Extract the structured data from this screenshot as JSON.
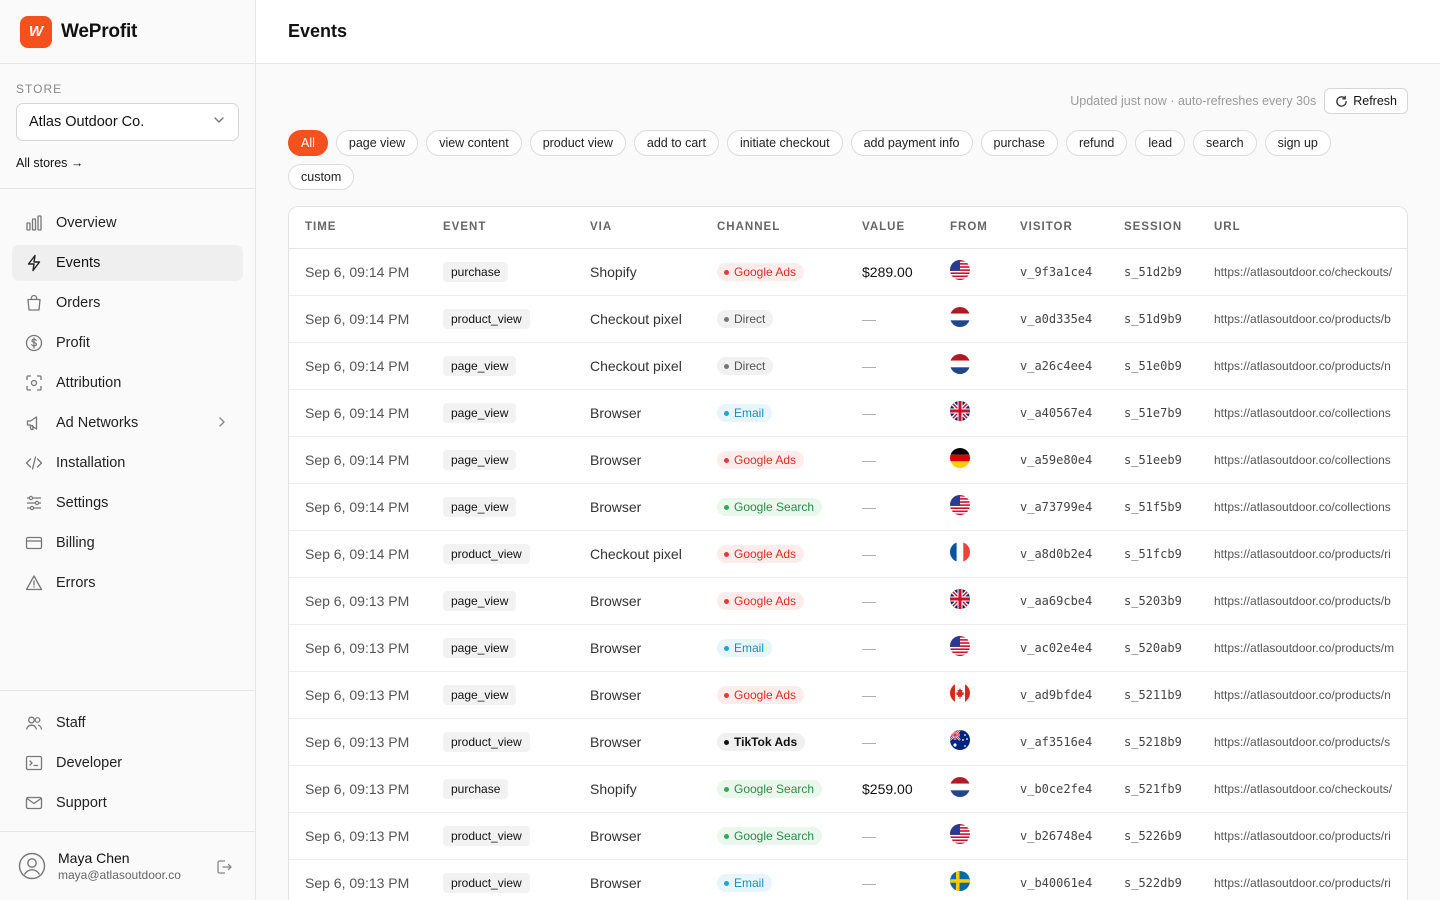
{
  "brand": {
    "logo_text": "W",
    "name": "WeProfit"
  },
  "store": {
    "label": "STORE",
    "selected": "Atlas Outdoor Co.",
    "all_stores": "All stores →"
  },
  "nav": {
    "items": [
      {
        "label": "Overview",
        "icon": "bar-chart-icon"
      },
      {
        "label": "Events",
        "icon": "lightning-icon",
        "active": true
      },
      {
        "label": "Orders",
        "icon": "shopping-bag-icon"
      },
      {
        "label": "Profit",
        "icon": "dollar-circle-icon"
      },
      {
        "label": "Attribution",
        "icon": "target-icon"
      },
      {
        "label": "Ad Networks",
        "icon": "megaphone-icon"
      },
      {
        "label": "Installation",
        "icon": "code-icon"
      },
      {
        "label": "Settings",
        "icon": "sliders-icon"
      },
      {
        "label": "Billing",
        "icon": "credit-card-icon"
      },
      {
        "label": "Errors",
        "icon": "warning-icon"
      }
    ],
    "bottom_items": [
      {
        "label": "Staff",
        "icon": "users-icon"
      },
      {
        "label": "Developer",
        "icon": "terminal-icon"
      },
      {
        "label": "Support",
        "icon": "mail-icon"
      }
    ]
  },
  "user": {
    "name": "Maya Chen",
    "email": "maya@atlasoutdoor.co"
  },
  "header": {
    "title": "Events"
  },
  "status": {
    "update_text": "Updated just now · auto-refreshes every 30s",
    "refresh_label": "Refresh"
  },
  "filters": [
    "All",
    "page view",
    "view content",
    "product view",
    "add to cart",
    "initiate checkout",
    "add payment info",
    "purchase",
    "refund",
    "lead",
    "search",
    "sign up",
    "custom"
  ],
  "table": {
    "columns": [
      "TIME",
      "EVENT",
      "VIA",
      "CHANNEL",
      "VALUE",
      "FROM",
      "VISITOR",
      "SESSION",
      "URL"
    ],
    "rows": [
      {
        "time": "Sep 6, 09:14 PM",
        "event": "purchase",
        "via": "Shopify",
        "channel": "Google Ads",
        "value": "$289.00",
        "flag": "us",
        "visitor": "v_9f3a1ce4",
        "session": "s_51d2b9",
        "url": "https://atlasoutdoor.co/checkouts/"
      },
      {
        "time": "Sep 6, 09:14 PM",
        "event": "product_view",
        "via": "Checkout pixel",
        "channel": "Direct",
        "value": "—",
        "flag": "nl",
        "visitor": "v_a0d335e4",
        "session": "s_51d9b9",
        "url": "https://atlasoutdoor.co/products/b"
      },
      {
        "time": "Sep 6, 09:14 PM",
        "event": "page_view",
        "via": "Checkout pixel",
        "channel": "Direct",
        "value": "—",
        "flag": "nl",
        "visitor": "v_a26c4ee4",
        "session": "s_51e0b9",
        "url": "https://atlasoutdoor.co/products/n"
      },
      {
        "time": "Sep 6, 09:14 PM",
        "event": "page_view",
        "via": "Browser",
        "channel": "Email",
        "value": "—",
        "flag": "gb",
        "visitor": "v_a40567e4",
        "session": "s_51e7b9",
        "url": "https://atlasoutdoor.co/collections"
      },
      {
        "time": "Sep 6, 09:14 PM",
        "event": "page_view",
        "via": "Browser",
        "channel": "Google Ads",
        "value": "—",
        "flag": "de",
        "visitor": "v_a59e80e4",
        "session": "s_51eeb9",
        "url": "https://atlasoutdoor.co/collections"
      },
      {
        "time": "Sep 6, 09:14 PM",
        "event": "page_view",
        "via": "Browser",
        "channel": "Google Search",
        "value": "—",
        "flag": "us",
        "visitor": "v_a73799e4",
        "session": "s_51f5b9",
        "url": "https://atlasoutdoor.co/collections"
      },
      {
        "time": "Sep 6, 09:14 PM",
        "event": "product_view",
        "via": "Checkout pixel",
        "channel": "Google Ads",
        "value": "—",
        "flag": "fr",
        "visitor": "v_a8d0b2e4",
        "session": "s_51fcb9",
        "url": "https://atlasoutdoor.co/products/ri"
      },
      {
        "time": "Sep 6, 09:13 PM",
        "event": "page_view",
        "via": "Browser",
        "channel": "Google Ads",
        "value": "—",
        "flag": "gb",
        "visitor": "v_aa69cbe4",
        "session": "s_5203b9",
        "url": "https://atlasoutdoor.co/products/b"
      },
      {
        "time": "Sep 6, 09:13 PM",
        "event": "page_view",
        "via": "Browser",
        "channel": "Email",
        "value": "—",
        "flag": "us",
        "visitor": "v_ac02e4e4",
        "session": "s_520ab9",
        "url": "https://atlasoutdoor.co/products/m"
      },
      {
        "time": "Sep 6, 09:13 PM",
        "event": "page_view",
        "via": "Browser",
        "channel": "Google Ads",
        "value": "—",
        "flag": "ca",
        "visitor": "v_ad9bfde4",
        "session": "s_5211b9",
        "url": "https://atlasoutdoor.co/products/n"
      },
      {
        "time": "Sep 6, 09:13 PM",
        "event": "product_view",
        "via": "Browser",
        "channel": "TikTok Ads",
        "value": "—",
        "flag": "au",
        "visitor": "v_af3516e4",
        "session": "s_5218b9",
        "url": "https://atlasoutdoor.co/products/s"
      },
      {
        "time": "Sep 6, 09:13 PM",
        "event": "purchase",
        "via": "Shopify",
        "channel": "Google Search",
        "value": "$259.00",
        "flag": "nl",
        "visitor": "v_b0ce2fe4",
        "session": "s_521fb9",
        "url": "https://atlasoutdoor.co/checkouts/"
      },
      {
        "time": "Sep 6, 09:13 PM",
        "event": "product_view",
        "via": "Browser",
        "channel": "Google Search",
        "value": "—",
        "flag": "us",
        "visitor": "v_b26748e4",
        "session": "s_5226b9",
        "url": "https://atlasoutdoor.co/products/ri"
      },
      {
        "time": "Sep 6, 09:13 PM",
        "event": "product_view",
        "via": "Browser",
        "channel": "Email",
        "value": "—",
        "flag": "se",
        "visitor": "v_b40061e4",
        "session": "s_522db9",
        "url": "https://atlasoutdoor.co/products/ri"
      }
    ]
  },
  "channel_colors": {
    "Google Ads": {
      "bg": "#fdecec",
      "fg": "#d93025",
      "dot": "#e53935"
    },
    "Direct": {
      "bg": "#f1f1f1",
      "fg": "#555555",
      "dot": "#777777"
    },
    "Email": {
      "bg": "#e8f6fb",
      "fg": "#1a8fb5",
      "dot": "#1fa3d1"
    },
    "Google Search": {
      "bg": "#e9f7ec",
      "fg": "#2e8a48",
      "dot": "#34a853"
    },
    "TikTok Ads": {
      "bg": "#f0f0f0",
      "fg": "#111111",
      "dot": "#111111"
    }
  },
  "accent": "#f4511e"
}
